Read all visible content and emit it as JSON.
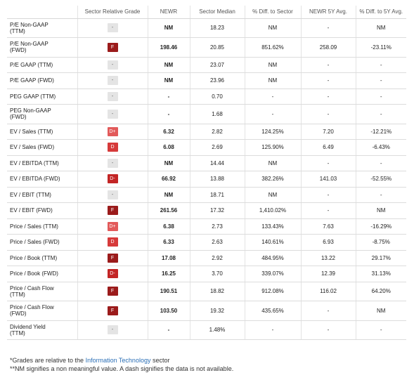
{
  "headers": {
    "metric": "",
    "grade": "Sector Relative Grade",
    "ticker": "NEWR",
    "median": "Sector Median",
    "diff": "% Diff. to Sector",
    "avg5y": "NEWR 5Y Avg.",
    "diff5y": "% Diff. to 5Y Avg."
  },
  "colors": {
    "F": "#9b1b1b",
    "D-": "#c32525",
    "D": "#d63a3a",
    "D+": "#e25a5a",
    "-": "#e4e4e4"
  },
  "rows": [
    {
      "l1": "P/E Non-GAAP",
      "l2": "(TTM)",
      "grade": "-",
      "newr": "NM",
      "median": "18.23",
      "diff": "NM",
      "avg": "-",
      "avgdiff": "NM"
    },
    {
      "l1": "P/E Non-GAAP",
      "l2": "(FWD)",
      "grade": "F",
      "newr": "198.46",
      "median": "20.85",
      "diff": "851.62%",
      "avg": "258.09",
      "avgdiff": "-23.11%"
    },
    {
      "l1": "P/E GAAP (TTM)",
      "l2": "",
      "grade": "-",
      "newr": "NM",
      "median": "23.07",
      "diff": "NM",
      "avg": "-",
      "avgdiff": "-"
    },
    {
      "l1": "P/E GAAP (FWD)",
      "l2": "",
      "grade": "-",
      "newr": "NM",
      "median": "23.96",
      "diff": "NM",
      "avg": "-",
      "avgdiff": "-"
    },
    {
      "l1": "PEG GAAP (TTM)",
      "l2": "",
      "grade": "-",
      "newr": "-",
      "median": "0.70",
      "diff": "-",
      "avg": "-",
      "avgdiff": "-"
    },
    {
      "l1": "PEG Non-GAAP",
      "l2": "(FWD)",
      "grade": "-",
      "newr": "-",
      "median": "1.68",
      "diff": "-",
      "avg": "-",
      "avgdiff": "-"
    },
    {
      "l1": "EV / Sales (TTM)",
      "l2": "",
      "grade": "D+",
      "newr": "6.32",
      "median": "2.82",
      "diff": "124.25%",
      "avg": "7.20",
      "avgdiff": "-12.21%"
    },
    {
      "l1": "EV / Sales (FWD)",
      "l2": "",
      "grade": "D",
      "newr": "6.08",
      "median": "2.69",
      "diff": "125.90%",
      "avg": "6.49",
      "avgdiff": "-6.43%"
    },
    {
      "l1": "EV / EBITDA (TTM)",
      "l2": "",
      "grade": "-",
      "newr": "NM",
      "median": "14.44",
      "diff": "NM",
      "avg": "-",
      "avgdiff": "-"
    },
    {
      "l1": "EV / EBITDA (FWD)",
      "l2": "",
      "grade": "D-",
      "newr": "66.92",
      "median": "13.88",
      "diff": "382.26%",
      "avg": "141.03",
      "avgdiff": "-52.55%"
    },
    {
      "l1": "EV / EBIT (TTM)",
      "l2": "",
      "grade": "-",
      "newr": "NM",
      "median": "18.71",
      "diff": "NM",
      "avg": "-",
      "avgdiff": "-"
    },
    {
      "l1": "EV / EBIT (FWD)",
      "l2": "",
      "grade": "F",
      "newr": "261.56",
      "median": "17.32",
      "diff": "1,410.02%",
      "avg": "-",
      "avgdiff": "NM"
    },
    {
      "l1": "Price / Sales (TTM)",
      "l2": "",
      "grade": "D+",
      "newr": "6.38",
      "median": "2.73",
      "diff": "133.43%",
      "avg": "7.63",
      "avgdiff": "-16.29%"
    },
    {
      "l1": "Price / Sales (FWD)",
      "l2": "",
      "grade": "D",
      "newr": "6.33",
      "median": "2.63",
      "diff": "140.61%",
      "avg": "6.93",
      "avgdiff": "-8.75%"
    },
    {
      "l1": "Price / Book (TTM)",
      "l2": "",
      "grade": "F",
      "newr": "17.08",
      "median": "2.92",
      "diff": "484.95%",
      "avg": "13.22",
      "avgdiff": "29.17%"
    },
    {
      "l1": "Price / Book (FWD)",
      "l2": "",
      "grade": "D-",
      "newr": "16.25",
      "median": "3.70",
      "diff": "339.07%",
      "avg": "12.39",
      "avgdiff": "31.13%"
    },
    {
      "l1": "Price / Cash Flow",
      "l2": "(TTM)",
      "grade": "F",
      "newr": "190.51",
      "median": "18.82",
      "diff": "912.08%",
      "avg": "116.02",
      "avgdiff": "64.20%"
    },
    {
      "l1": "Price / Cash Flow",
      "l2": "(FWD)",
      "grade": "F",
      "newr": "103.50",
      "median": "19.32",
      "diff": "435.65%",
      "avg": "-",
      "avgdiff": "NM"
    },
    {
      "l1": "Dividend Yield",
      "l2": "(TTM)",
      "grade": "-",
      "newr": "-",
      "median": "1.48%",
      "diff": "-",
      "avg": "-",
      "avgdiff": "-"
    }
  ],
  "footnotes": {
    "line1_prefix": "*Grades are relative to the ",
    "line1_link": "Information Technology",
    "line1_suffix": " sector",
    "line2": "**NM signifies a non meaningful value. A dash signifies the data is not available."
  }
}
